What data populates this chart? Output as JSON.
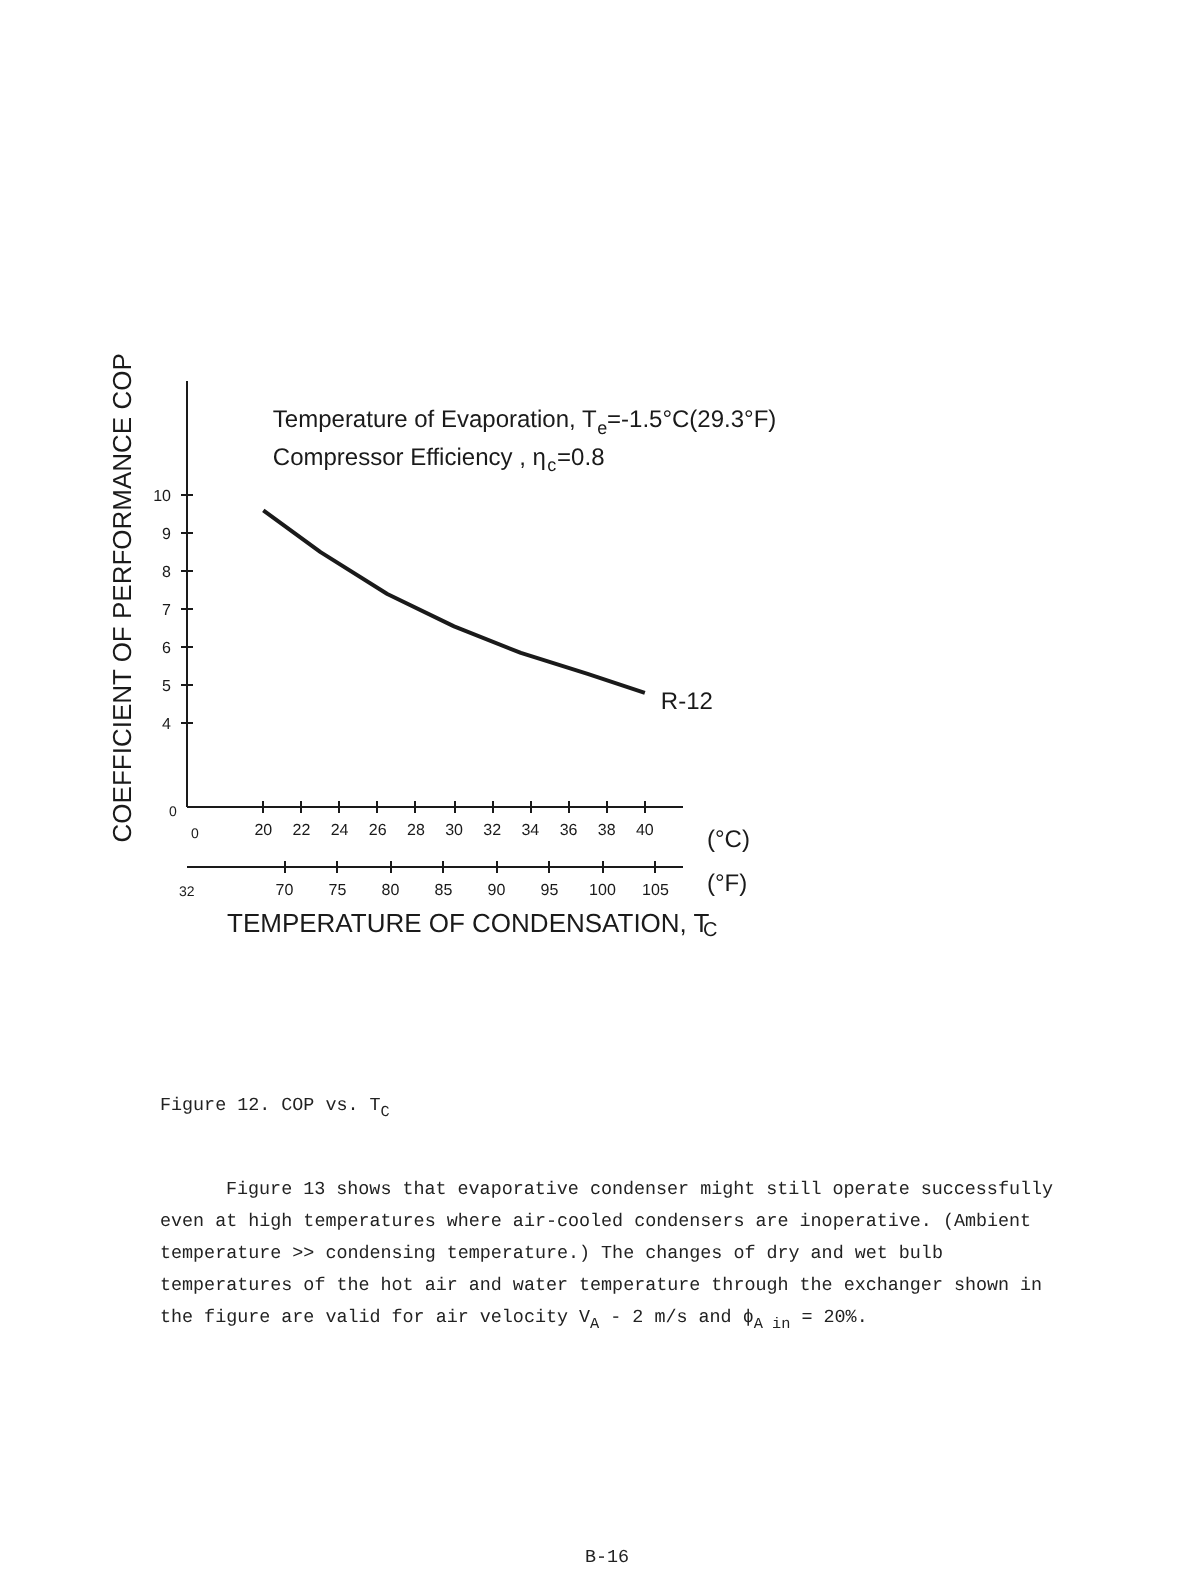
{
  "chart_data": {
    "type": "line",
    "xlabel": "TEMPERATURE OF CONDENSATION, T$_{C}$",
    "ylabel": "COEFFICIENT OF PERFORMANCE  COP",
    "x": [
      20,
      23,
      26.5,
      30,
      33.5,
      37,
      40
    ],
    "series": [
      {
        "name": "R-12",
        "color": "#1a1a1a",
        "values": [
          9.6,
          8.5,
          7.4,
          6.55,
          5.85,
          5.3,
          4.8
        ]
      }
    ],
    "xlim": [
      16,
      42
    ],
    "xticks": [
      20,
      22,
      24,
      26,
      28,
      30,
      32,
      34,
      36,
      38,
      40
    ],
    "x2lim": [
      60.8,
      107.6
    ],
    "x2ticks": [
      70,
      75,
      80,
      85,
      90,
      95,
      100,
      105
    ],
    "ylim": [
      1.8,
      13
    ],
    "yticks": [
      4,
      5,
      6,
      7,
      8,
      9,
      10
    ],
    "grid": false,
    "legend": false,
    "marker": "none",
    "line_style": "solid",
    "annotations": [
      "Temperature of Evaporation, T$_{e}$=-1.5°C(29.3°F)",
      "Compressor Efficiency , η$_{c}$=0.8",
      "(°C)",
      "(°F)",
      "0",
      "0",
      "32",
      "Figure 12.  COP vs. T$_{C}$",
      "Figure 13 shows that evaporative condenser might still operate successfully even at high temperatures where air-cooled condensers are inoperative.  (Ambient temperature >> condensing temperature.)  The changes of dry and wet bulb temperatures of the hot air and water temperature through the exchanger shown in the figure are valid for air velocity V$_{A}$ - 2 m/s and ϕ$_{A in}$ = 20%.",
      "B-16"
    ]
  }
}
